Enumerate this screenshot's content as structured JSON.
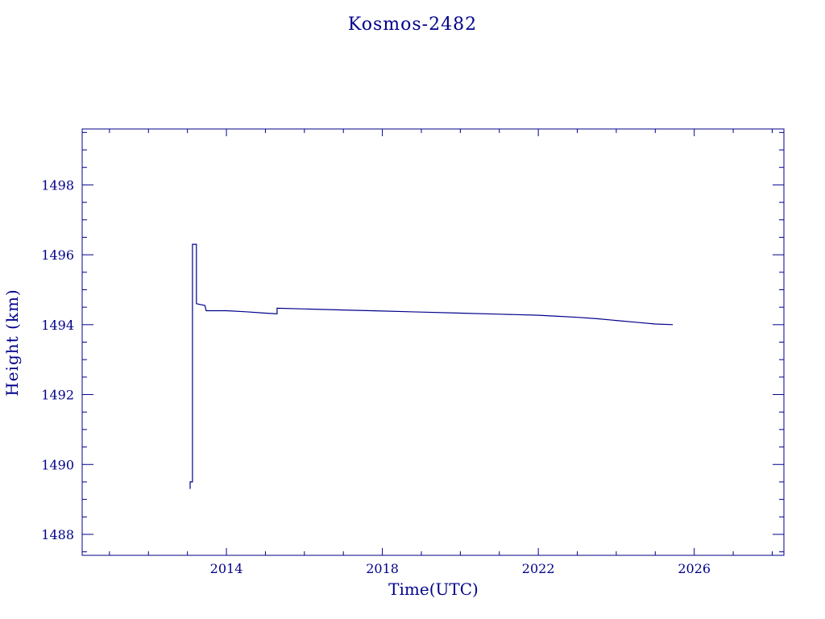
{
  "chart_data": {
    "type": "line",
    "title": "Kosmos-2482",
    "xlabel": "Time(UTC)",
    "ylabel": "Height (km)",
    "xlim": [
      2010.3,
      2028.3
    ],
    "ylim": [
      1487.4,
      1499.6
    ],
    "x_ticks": [
      2014,
      2018,
      2022,
      2026
    ],
    "y_ticks": [
      1488,
      1490,
      1492,
      1494,
      1496,
      1498
    ],
    "x_minor_step": 1,
    "y_minor_step": 0.5,
    "grid": false,
    "color": "#00008b",
    "series": [
      {
        "points": [
          [
            2013.07,
            1489.3
          ],
          [
            2013.07,
            1489.5
          ],
          [
            2013.13,
            1489.5
          ],
          [
            2013.13,
            1496.3
          ],
          [
            2013.23,
            1496.3
          ],
          [
            2013.23,
            1494.6
          ],
          [
            2013.45,
            1494.55
          ],
          [
            2013.48,
            1494.4
          ],
          [
            2014.0,
            1494.4
          ],
          [
            2014.5,
            1494.37
          ],
          [
            2015.0,
            1494.33
          ],
          [
            2015.3,
            1494.31
          ],
          [
            2015.3,
            1494.47
          ],
          [
            2016.0,
            1494.45
          ],
          [
            2017.0,
            1494.42
          ],
          [
            2018.0,
            1494.39
          ],
          [
            2019.0,
            1494.36
          ],
          [
            2020.0,
            1494.33
          ],
          [
            2021.0,
            1494.3
          ],
          [
            2022.0,
            1494.27
          ],
          [
            2022.5,
            1494.24
          ],
          [
            2023.0,
            1494.21
          ],
          [
            2023.5,
            1494.17
          ],
          [
            2024.0,
            1494.12
          ],
          [
            2024.5,
            1494.07
          ],
          [
            2025.0,
            1494.02
          ],
          [
            2025.45,
            1494.0
          ]
        ]
      }
    ]
  }
}
